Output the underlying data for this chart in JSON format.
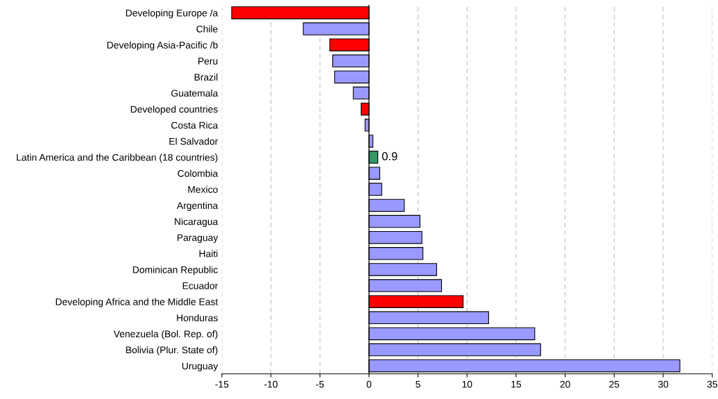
{
  "chart_data": {
    "type": "bar",
    "orientation": "horizontal",
    "categories": [
      "Developing Europe /a",
      "Chile",
      "Developing Asia-Pacific /b",
      "Peru",
      "Brazil",
      "Guatemala",
      "Developed countries",
      "Costa Rica",
      "El Salvador",
      "Latin America and the Caribbean (18 countries)",
      "Colombia",
      "Mexico",
      "Argentina",
      "Nicaragua",
      "Paraguay",
      "Haiti",
      "Dominican Republic",
      "Ecuador",
      "Developing Africa and the Middle East",
      "Honduras",
      "Venezuela (Bol. Rep. of)",
      "Bolivia (Plur. State of)",
      "Uruguay"
    ],
    "values": [
      -14.0,
      -6.7,
      -4.0,
      -3.7,
      -3.5,
      -1.6,
      -0.8,
      -0.4,
      0.4,
      0.9,
      1.1,
      1.3,
      3.6,
      5.2,
      5.4,
      5.5,
      6.9,
      7.4,
      9.6,
      12.2,
      16.9,
      17.5,
      31.7
    ],
    "colors": [
      "#ff0000",
      "#9999ff",
      "#ff0000",
      "#9999ff",
      "#9999ff",
      "#9999ff",
      "#ff0000",
      "#9999ff",
      "#9999ff",
      "#339966",
      "#9999ff",
      "#9999ff",
      "#9999ff",
      "#9999ff",
      "#9999ff",
      "#9999ff",
      "#9999ff",
      "#9999ff",
      "#ff0000",
      "#9999ff",
      "#9999ff",
      "#9999ff",
      "#9999ff"
    ],
    "value_labels": [
      null,
      null,
      null,
      null,
      null,
      null,
      null,
      null,
      null,
      "0.9",
      null,
      null,
      null,
      null,
      null,
      null,
      null,
      null,
      null,
      null,
      null,
      null,
      null
    ],
    "xlim": [
      -15,
      35
    ],
    "xticks": [
      -15,
      -10,
      -5,
      0,
      5,
      10,
      15,
      20,
      25,
      30,
      35
    ],
    "grid": "x"
  }
}
